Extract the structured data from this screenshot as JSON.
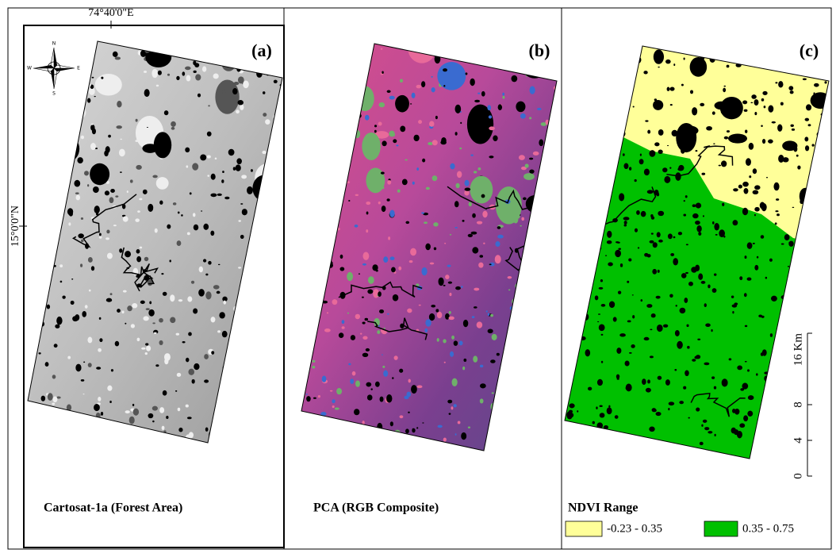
{
  "coordinates": {
    "longitude": "74°40'0\"E",
    "latitude": "15°0'0\"N"
  },
  "panels": [
    {
      "label": "(a)",
      "caption": "Cartosat-1a (Forest Area)"
    },
    {
      "label": "(b)",
      "caption": "PCA (RGB Composite)"
    },
    {
      "label": "(c)",
      "caption": "NDVI Range"
    }
  ],
  "legend": {
    "items": [
      {
        "label": "-0.23 - 0.35",
        "color": "#ffff99"
      },
      {
        "label": "0.35 - 0.75",
        "color": "#00c000"
      }
    ]
  },
  "scale_bar": {
    "range": [
      0,
      16
    ],
    "ticks": [
      0,
      4,
      8,
      {
        "value": 16,
        "label": "16 Km"
      }
    ]
  },
  "compass": {
    "north": "N",
    "south": "S",
    "east": "E",
    "west": "W"
  }
}
